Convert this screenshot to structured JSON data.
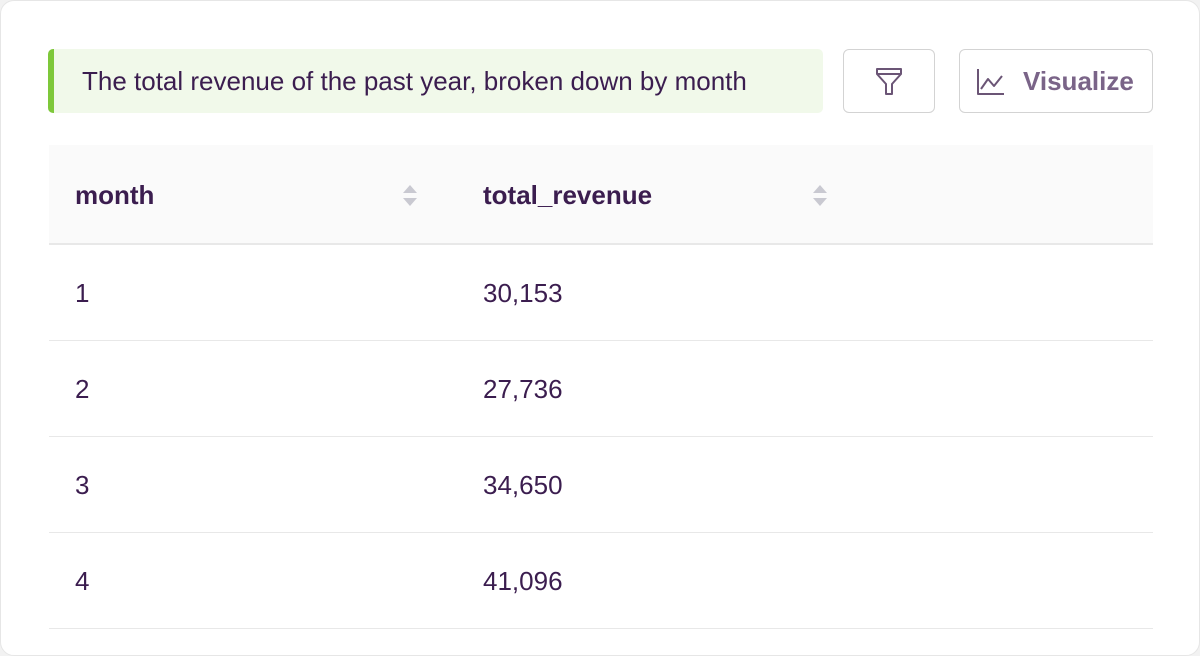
{
  "query": {
    "text": "The total revenue of the past year, broken down by month"
  },
  "toolbar": {
    "visualize": "Visualize"
  },
  "table": {
    "columns": [
      "month",
      "total_revenue"
    ],
    "rows": [
      [
        "1",
        "30,153"
      ],
      [
        "2",
        "27,736"
      ],
      [
        "3",
        "34,650"
      ],
      [
        "4",
        "41,096"
      ]
    ]
  }
}
